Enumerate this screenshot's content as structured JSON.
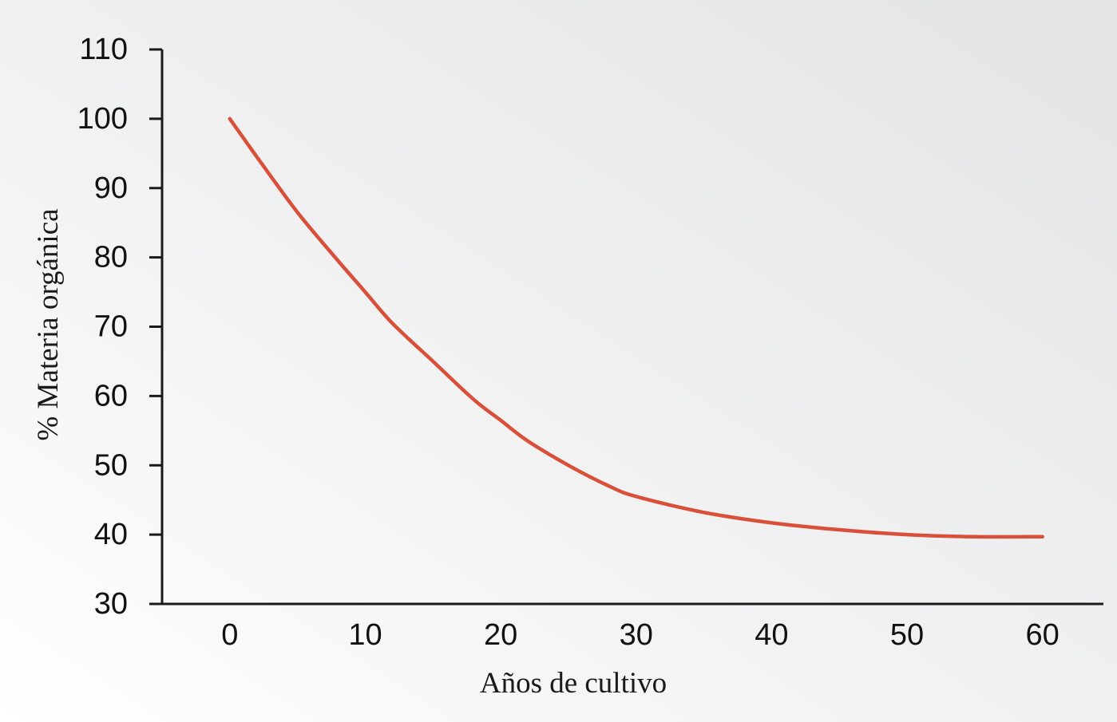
{
  "chart_data": {
    "type": "line",
    "title": "",
    "xlabel": "Años de cultivo",
    "ylabel": "% Materia orgánica",
    "xlim": [
      -5,
      64.5
    ],
    "ylim": [
      30,
      110
    ],
    "x_ticks": [
      "0",
      "10",
      "20",
      "30",
      "40",
      "50",
      "60"
    ],
    "y_ticks": [
      "30",
      "40",
      "50",
      "60",
      "70",
      "80",
      "90",
      "100",
      "110"
    ],
    "x_tick_values": [
      0,
      10,
      20,
      30,
      40,
      50,
      60
    ],
    "y_tick_values": [
      30,
      40,
      50,
      60,
      70,
      80,
      90,
      100,
      110
    ],
    "grid": false,
    "legend": "none",
    "series": [
      {
        "color": "#d9503a",
        "x": [
          0,
          2,
          5,
          8,
          10,
          12,
          15,
          18,
          20,
          22,
          25,
          28,
          30,
          35,
          40,
          45,
          50,
          55,
          60
        ],
        "y": [
          100,
          94.5,
          86.5,
          79.5,
          75,
          70.5,
          65,
          59.5,
          56.5,
          53.5,
          50,
          47,
          45.5,
          43.2,
          41.7,
          40.7,
          40,
          39.7,
          39.7
        ]
      }
    ]
  },
  "colors": {
    "axis": "#1a1a1a",
    "background_light": "#ffffff",
    "background_gray": "#e6e7e8"
  }
}
